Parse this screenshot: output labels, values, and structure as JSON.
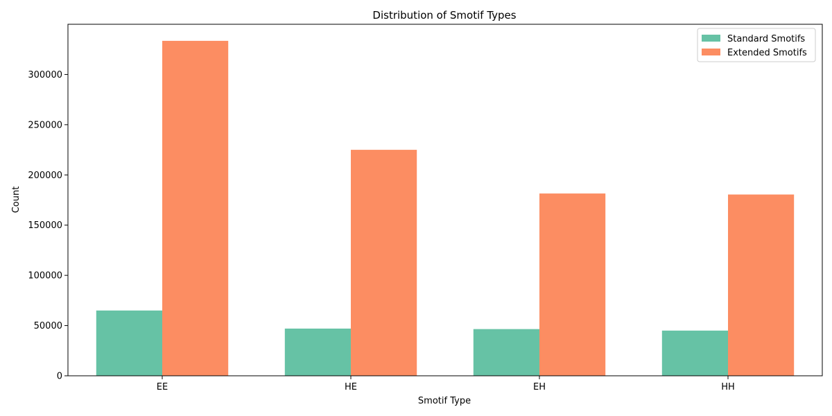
{
  "chart_data": {
    "type": "bar",
    "title": "Distribution of Smotif Types",
    "xlabel": "Smotif Type",
    "ylabel": "Count",
    "categories": [
      "EE",
      "HE",
      "EH",
      "HH"
    ],
    "series": [
      {
        "name": "Standard Smotifs",
        "color": "#66c2a5",
        "values": [
          65000,
          47000,
          46500,
          45000
        ]
      },
      {
        "name": "Extended Smotifs",
        "color": "#fc8d62",
        "values": [
          333500,
          225000,
          181500,
          180500
        ]
      }
    ],
    "ylim": [
      0,
      350000
    ],
    "yticks": [
      0,
      50000,
      100000,
      150000,
      200000,
      250000,
      300000
    ],
    "grid": false,
    "legend_position": "top-right"
  }
}
